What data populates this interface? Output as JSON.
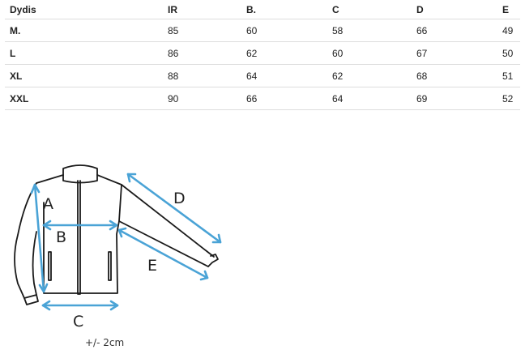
{
  "size_table": {
    "headers": [
      "Dydis",
      "IR",
      "B.",
      "C",
      "D",
      "E"
    ],
    "rows": [
      [
        "M.",
        "85",
        "60",
        "58",
        "66",
        "49"
      ],
      [
        "L",
        "86",
        "62",
        "60",
        "67",
        "50"
      ],
      [
        "XL",
        "88",
        "64",
        "62",
        "68",
        "51"
      ],
      [
        "XXL",
        "90",
        "66",
        "64",
        "69",
        "52"
      ]
    ]
  },
  "diagram": {
    "labels": {
      "a": "A",
      "b": "B",
      "c": "C",
      "d": "D",
      "e": "E"
    },
    "tolerance": "+/- 2cm",
    "arrow_color": "#4aa3d6",
    "outline_color": "#1a1a1a"
  }
}
